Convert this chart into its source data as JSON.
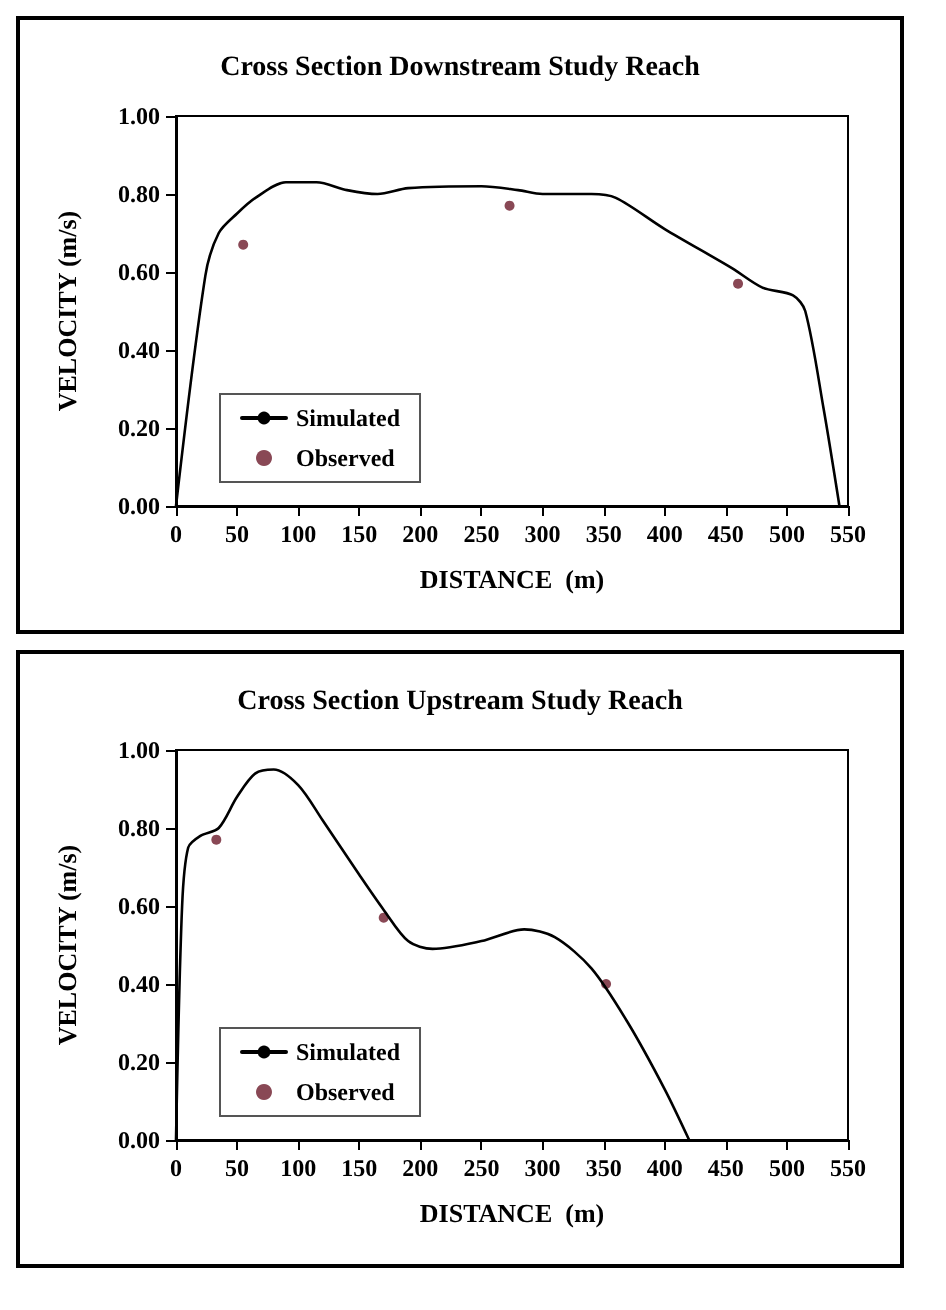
{
  "chart_data": [
    {
      "type": "line",
      "title": "Cross Section Downstream Study Reach",
      "xlabel": "DISTANCE  (m)",
      "ylabel": "VELOCITY (m/s)",
      "xlim": [
        0,
        550
      ],
      "ylim": [
        0,
        1
      ],
      "xticks": [
        0,
        50,
        100,
        150,
        200,
        250,
        300,
        350,
        400,
        450,
        500,
        550
      ],
      "yticks": [
        {
          "value": 0,
          "label": "0.00"
        },
        {
          "value": 0.2,
          "label": "0.20"
        },
        {
          "value": 0.4,
          "label": "0.40"
        },
        {
          "value": 0.6,
          "label": "0.60"
        },
        {
          "value": 0.8,
          "label": "0.80"
        },
        {
          "value": 1,
          "label": "1.00"
        }
      ],
      "grid": false,
      "legend": "bottom left",
      "series": [
        {
          "name": "Simulated",
          "color": "#000000",
          "marker": "none",
          "line_style": "solid",
          "x": [
            0,
            24,
            35,
            50,
            65,
            90,
            115,
            140,
            165,
            190,
            250,
            280,
            300,
            340,
            360,
            400,
            455,
            480,
            505,
            515,
            530,
            543
          ],
          "values": [
            0,
            0.59,
            0.7,
            0.75,
            0.79,
            0.83,
            0.83,
            0.81,
            0.8,
            0.815,
            0.82,
            0.81,
            0.8,
            0.8,
            0.79,
            0.71,
            0.61,
            0.56,
            0.54,
            0.5,
            0.25,
            0
          ]
        },
        {
          "name": "Observed",
          "type": "scatter",
          "color": "#6b1a2a",
          "marker": "circle",
          "x": [
            55,
            273,
            460
          ],
          "values": [
            0.67,
            0.77,
            0.57
          ]
        }
      ]
    },
    {
      "type": "line",
      "title": "Cross Section Upstream Study Reach",
      "xlabel": "DISTANCE  (m)",
      "ylabel": "VELOCITY (m/s)",
      "xlim": [
        0,
        550
      ],
      "ylim": [
        0,
        1
      ],
      "xticks": [
        0,
        50,
        100,
        150,
        200,
        250,
        300,
        350,
        400,
        450,
        500,
        550
      ],
      "yticks": [
        {
          "value": 0,
          "label": "0.00"
        },
        {
          "value": 0.2,
          "label": "0.20"
        },
        {
          "value": 0.4,
          "label": "0.40"
        },
        {
          "value": 0.6,
          "label": "0.60"
        },
        {
          "value": 0.8,
          "label": "0.80"
        },
        {
          "value": 1,
          "label": "1.00"
        }
      ],
      "grid": false,
      "legend": "bottom left",
      "series": [
        {
          "name": "Simulated",
          "color": "#000000",
          "marker": "none",
          "line_style": "solid",
          "x": [
            0,
            5,
            10,
            20,
            35,
            50,
            65,
            80,
            100,
            120,
            150,
            170,
            190,
            210,
            250,
            285,
            310,
            340,
            370,
            400,
            420
          ],
          "values": [
            0,
            0.6,
            0.75,
            0.78,
            0.8,
            0.88,
            0.94,
            0.95,
            0.91,
            0.82,
            0.68,
            0.59,
            0.51,
            0.49,
            0.51,
            0.54,
            0.52,
            0.44,
            0.3,
            0.13,
            0
          ]
        },
        {
          "name": "Observed",
          "type": "scatter",
          "color": "#6b1a2a",
          "marker": "circle",
          "x": [
            33,
            170,
            352
          ],
          "values": [
            0.77,
            0.57,
            0.4
          ]
        }
      ]
    }
  ]
}
